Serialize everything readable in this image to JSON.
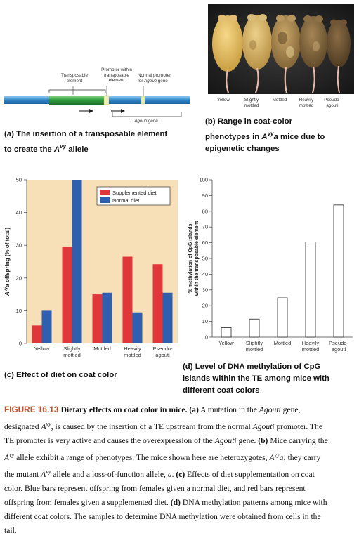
{
  "panel_a": {
    "label_transposable": [
      "Transposable",
      "element"
    ],
    "label_promoter_te": [
      "Promoter within",
      "transposable",
      "element"
    ],
    "label_normal_promoter": [
      "Normal promoter",
      "for Agouti gene"
    ],
    "label_gene": "Agouti gene",
    "title_line1": "(a) The insertion of a transposable element",
    "title_line2_pre": "to create the ",
    "title_allele": "A",
    "title_allele_sup": "vy",
    "title_line2_post": " allele"
  },
  "panel_b": {
    "mouse_labels": [
      [
        "Yellow"
      ],
      [
        "Slightly",
        "mottled"
      ],
      [
        "Mottled"
      ],
      [
        "Heavily",
        "mottled"
      ],
      [
        "Pseudo-",
        "agouti"
      ]
    ],
    "title_line1": "(b) Range in coat-color",
    "title_line2_pre": "phenotypes in ",
    "title_allele": "A",
    "title_allele_sup": "vy",
    "title_allele_post": "a",
    "title_line2_post": " mice due to",
    "title_line3": "epigenetic changes"
  },
  "panel_c": {
    "title": "(c) Effect of diet on coat color",
    "colors": {
      "supplemented": "#e0383a",
      "normal": "#2f5fae",
      "background": "#f7dfb8"
    },
    "chart_data": {
      "type": "bar",
      "categories": [
        [
          "Yellow"
        ],
        [
          "Slightly",
          "mottled"
        ],
        [
          "Mottled"
        ],
        [
          "Heavily",
          "mottled"
        ],
        [
          "Pseudo-",
          "agouti"
        ]
      ],
      "series": [
        {
          "name": "Supplemented diet",
          "values": [
            5.5,
            29.5,
            15,
            26.5,
            24.2
          ]
        },
        {
          "name": "Normal diet",
          "values": [
            10,
            50,
            15.5,
            9.5,
            15.5
          ]
        }
      ],
      "ylabel_pre": "A",
      "ylabel_sup": "vy",
      "ylabel_post": "a offspring (% of total)",
      "ylim": [
        0,
        50
      ],
      "yticks": [
        0,
        10,
        20,
        30,
        40,
        50
      ],
      "legend": "top-right"
    }
  },
  "panel_d": {
    "title_line1": "(d) Level of DNA methylation of CpG",
    "title_line2": "islands within the TE among mice with",
    "title_line3": "different coat colors",
    "chart_data": {
      "type": "bar",
      "categories": [
        [
          "Yellow"
        ],
        [
          "Slightly",
          "mottled"
        ],
        [
          "Mottled"
        ],
        [
          "Heavily",
          "mottled"
        ],
        [
          "Pseudo-",
          "agouti"
        ]
      ],
      "values": [
        6,
        11.5,
        25,
        60.5,
        84
      ],
      "ylabel_line1": "% methylation of CpG islands",
      "ylabel_line2": "within the transposable element",
      "ylim": [
        0,
        100
      ],
      "yticks": [
        0,
        10,
        20,
        30,
        40,
        50,
        60,
        70,
        80,
        90,
        100
      ]
    }
  },
  "caption": {
    "figure_label": "FIGURE 16.13",
    "lines": [
      [
        {
          "b": "Dietary effects on coat color in mice."
        },
        {
          "t": " "
        },
        {
          "b": "(a)"
        },
        {
          "t": " A mutation in the "
        },
        {
          "i": "Agouti"
        },
        {
          "t": " gene,"
        }
      ],
      [
        {
          "t": "designated "
        },
        {
          "i": "A"
        },
        {
          "sup": "vy"
        },
        {
          "t": ", is caused by the insertion of a TE upstream from the normal "
        },
        {
          "i": "Agouti"
        },
        {
          "t": " promoter. The"
        }
      ],
      [
        {
          "t": "TE promoter is very active and causes the overexpression of the "
        },
        {
          "i": "Agouti"
        },
        {
          "t": " gene. "
        },
        {
          "b": "(b)"
        },
        {
          "t": " Mice carrying the"
        }
      ],
      [
        {
          "i": "A"
        },
        {
          "sup": "vy"
        },
        {
          "t": " allele exhibit a range of phenotypes. The mice shown here are heterozygotes, "
        },
        {
          "i": "A"
        },
        {
          "sup": "vy"
        },
        {
          "i": "a"
        },
        {
          "t": "; they carry"
        }
      ],
      [
        {
          "t": "the mutant "
        },
        {
          "i": "A"
        },
        {
          "sup": "vy"
        },
        {
          "t": " allele and a loss-of-function allele, "
        },
        {
          "i": "a"
        },
        {
          "t": ". "
        },
        {
          "b": "(c)"
        },
        {
          "t": " Effects of diet supplementation on coat"
        }
      ],
      [
        {
          "t": "color. Blue bars represent offspring from females given a normal diet, and red bars represent"
        }
      ],
      [
        {
          "t": "offspring from females given a supplemented diet. "
        },
        {
          "b": "(d)"
        },
        {
          "t": " DNA methylation patterns among mice with"
        }
      ],
      [
        {
          "t": "different coat colors. The samples to determine DNA methylation were obtained from cells in the"
        }
      ],
      [
        {
          "t": "tail."
        }
      ]
    ]
  }
}
